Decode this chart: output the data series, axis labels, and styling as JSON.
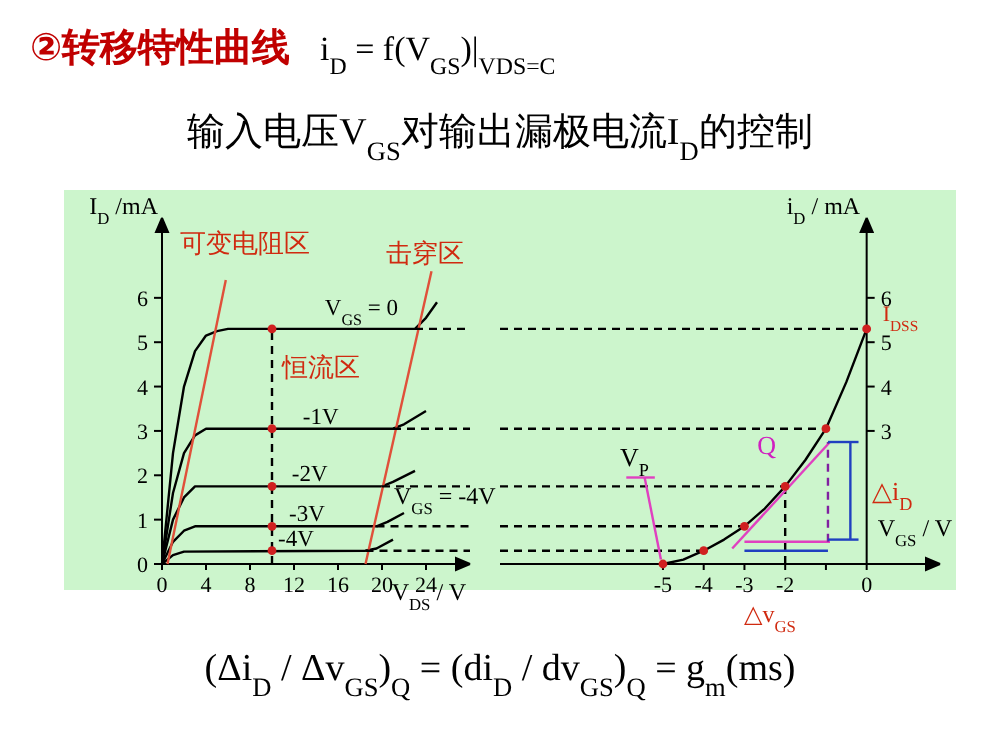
{
  "chart_data": [
    {
      "type": "line",
      "title": "②转移特性曲线",
      "subtitle": "输入电压V$_{GS}$对输出漏极电流I$_{D}$的控制",
      "xlabel": "V$_{DS}$ / V",
      "ylabel": "I$_{D}$ /mA",
      "xlim": [
        0,
        28
      ],
      "ylim": [
        0,
        7.8
      ],
      "xticks": [
        0,
        4,
        8,
        12,
        16,
        20,
        24
      ],
      "yticks": [
        0,
        1,
        2,
        3,
        4,
        5,
        6
      ],
      "annotations": [
        "i$_{D}$ = f(V$_{GS}$)|$_{VDS=C}$",
        "可变电阻区",
        "击穿区",
        "恒流区",
        "V$_{GS}$ = -4V"
      ],
      "series": [
        {
          "name": "V$_{GS}$ = 0",
          "color": "#000000",
          "x": [
            0,
            1,
            2,
            3,
            4,
            5,
            6,
            23,
            24,
            25
          ],
          "values": [
            0,
            2.5,
            4.0,
            4.8,
            5.15,
            5.25,
            5.3,
            5.3,
            5.55,
            5.9
          ]
        },
        {
          "name": "-1V",
          "color": "#000000",
          "x": [
            0,
            1,
            2,
            3,
            4,
            21,
            22,
            24
          ],
          "values": [
            0,
            1.6,
            2.5,
            2.9,
            3.05,
            3.05,
            3.15,
            3.45
          ]
        },
        {
          "name": "-2V",
          "color": "#000000",
          "x": [
            0,
            1,
            2,
            3,
            20,
            21,
            23
          ],
          "values": [
            0,
            1.0,
            1.5,
            1.75,
            1.75,
            1.85,
            2.1
          ]
        },
        {
          "name": "-3V",
          "color": "#000000",
          "x": [
            0,
            1,
            2,
            3,
            19.5,
            20.5,
            22
          ],
          "values": [
            0,
            0.5,
            0.75,
            0.85,
            0.85,
            0.95,
            1.15
          ]
        },
        {
          "name": "-4V",
          "color": "#000000",
          "x": [
            0,
            1,
            2,
            18.5,
            19.5,
            21
          ],
          "values": [
            0,
            0.2,
            0.28,
            0.3,
            0.35,
            0.55
          ]
        },
        {
          "color": "#e0503a",
          "x": [
            0.5,
            5.8
          ],
          "values": [
            0,
            6.4
          ]
        },
        {
          "color": "#e0503a",
          "x": [
            18.5,
            24.5
          ],
          "values": [
            0,
            6.6
          ]
        },
        {
          "color": "#000000",
          "line_style": "dashed",
          "x": [
            10,
            10
          ],
          "values": [
            0,
            5.3
          ]
        },
        {
          "type": "scatter",
          "color": "#d02020",
          "marker": "circle",
          "x": [
            10,
            10,
            10,
            10,
            10
          ],
          "values": [
            5.3,
            3.05,
            1.75,
            0.85,
            0.3
          ]
        },
        {
          "color": "#000000",
          "line_style": "dashed",
          "x": [
            23,
            28
          ],
          "values": [
            5.3,
            5.3
          ]
        },
        {
          "color": "#000000",
          "line_style": "dashed",
          "x": [
            21,
            28
          ],
          "values": [
            3.05,
            3.05
          ]
        },
        {
          "color": "#000000",
          "line_style": "dashed",
          "x": [
            20,
            28
          ],
          "values": [
            1.75,
            1.75
          ]
        },
        {
          "color": "#000000",
          "line_style": "dashed",
          "x": [
            19.5,
            28
          ],
          "values": [
            0.85,
            0.85
          ]
        },
        {
          "color": "#000000",
          "line_style": "dashed",
          "x": [
            18.5,
            28
          ],
          "values": [
            0.3,
            0.3
          ]
        }
      ]
    },
    {
      "type": "line",
      "xlabel": "V$_{GS}$ / V",
      "ylabel": "i$_{D}$ / mA",
      "xlim": [
        -9,
        1.8
      ],
      "ylim": [
        0,
        7.8
      ],
      "xticks": [
        -5,
        -4,
        -3,
        -2,
        {
          "value": -1,
          "label": null
        },
        0
      ],
      "yticks": [
        3,
        4,
        5,
        6
      ],
      "annotations": [
        "(Δi$_{D}$ / Δv$_{GS}$)$_{Q}$ = (di$_{D}$ / dv$_{GS}$)$_{Q}$ = g$_{m}$(ms)",
        "V$_{P}$",
        {
          "text": "Q",
          "x": -2,
          "y": 1.75
        },
        "△i$_{D}$",
        {
          "text": "I$_{DSS}$",
          "x": 0,
          "y": 5.3
        },
        "△v$_{GS}$"
      ],
      "series": [
        {
          "color": "#000000",
          "x": [
            -5,
            -4.5,
            -4,
            -3.5,
            -3,
            -2.5,
            -2,
            -1.5,
            -1,
            -0.5,
            0
          ],
          "values": [
            0,
            0.1,
            0.3,
            0.55,
            0.85,
            1.25,
            1.75,
            2.35,
            3.05,
            4.1,
            5.3
          ]
        },
        {
          "color": "#000000",
          "line_style": "dashed",
          "x": [
            -9,
            0
          ],
          "values": [
            5.3,
            5.3
          ]
        },
        {
          "color": "#000000",
          "line_style": "dashed",
          "x": [
            -9,
            -1
          ],
          "values": [
            3.05,
            3.05
          ]
        },
        {
          "color": "#000000",
          "line_style": "dashed",
          "x": [
            -9,
            -2
          ],
          "values": [
            1.75,
            1.75
          ]
        },
        {
          "color": "#000000",
          "line_style": "dashed",
          "x": [
            -9,
            -3
          ],
          "values": [
            0.85,
            0.85
          ]
        },
        {
          "color": "#000000",
          "line_style": "dashed",
          "x": [
            -9,
            -4
          ],
          "values": [
            0.3,
            0.3
          ]
        },
        {
          "color": "#000000",
          "line_style": "dashed",
          "x": [
            -2,
            -2
          ],
          "values": [
            0,
            1.75
          ]
        },
        {
          "color": "#e040c0",
          "x": [
            -3,
            -0.9
          ],
          "values": [
            0.5,
            0.5
          ]
        },
        {
          "color": "#e040c0",
          "x": [
            -3.3,
            -0.9
          ],
          "values": [
            0.35,
            2.75
          ]
        },
        {
          "color": "#8020a0",
          "line_style": "dashed",
          "x": [
            -0.95,
            -0.95
          ],
          "values": [
            0.5,
            2.75
          ]
        },
        {
          "color": "#2040c0",
          "x": [
            -0.95,
            -0.2
          ],
          "values": [
            2.75,
            2.75
          ]
        },
        {
          "color": "#2040c0",
          "x": [
            -0.95,
            -0.2
          ],
          "values": [
            0.55,
            0.55
          ]
        },
        {
          "color": "#2040c0",
          "x": [
            -0.4,
            -0.4
          ],
          "values": [
            0.55,
            2.75
          ]
        },
        {
          "color": "#2040c0",
          "x": [
            -3,
            -0.95
          ],
          "values": [
            0.3,
            0.3
          ]
        },
        {
          "color": "#e040c0",
          "x": [
            -5.9,
            -5.2
          ],
          "values": [
            1.95,
            1.95
          ]
        },
        {
          "color": "#e040c0",
          "x": [
            -5.45,
            -5.05
          ],
          "values": [
            1.95,
            0.1
          ]
        },
        {
          "type": "scatter",
          "color": "#d02020",
          "marker": "circle",
          "x": [
            -5,
            -4,
            -3,
            -2,
            -1,
            0
          ],
          "values": [
            0,
            0.3,
            0.85,
            1.75,
            3.05,
            5.3
          ]
        }
      ]
    }
  ]
}
